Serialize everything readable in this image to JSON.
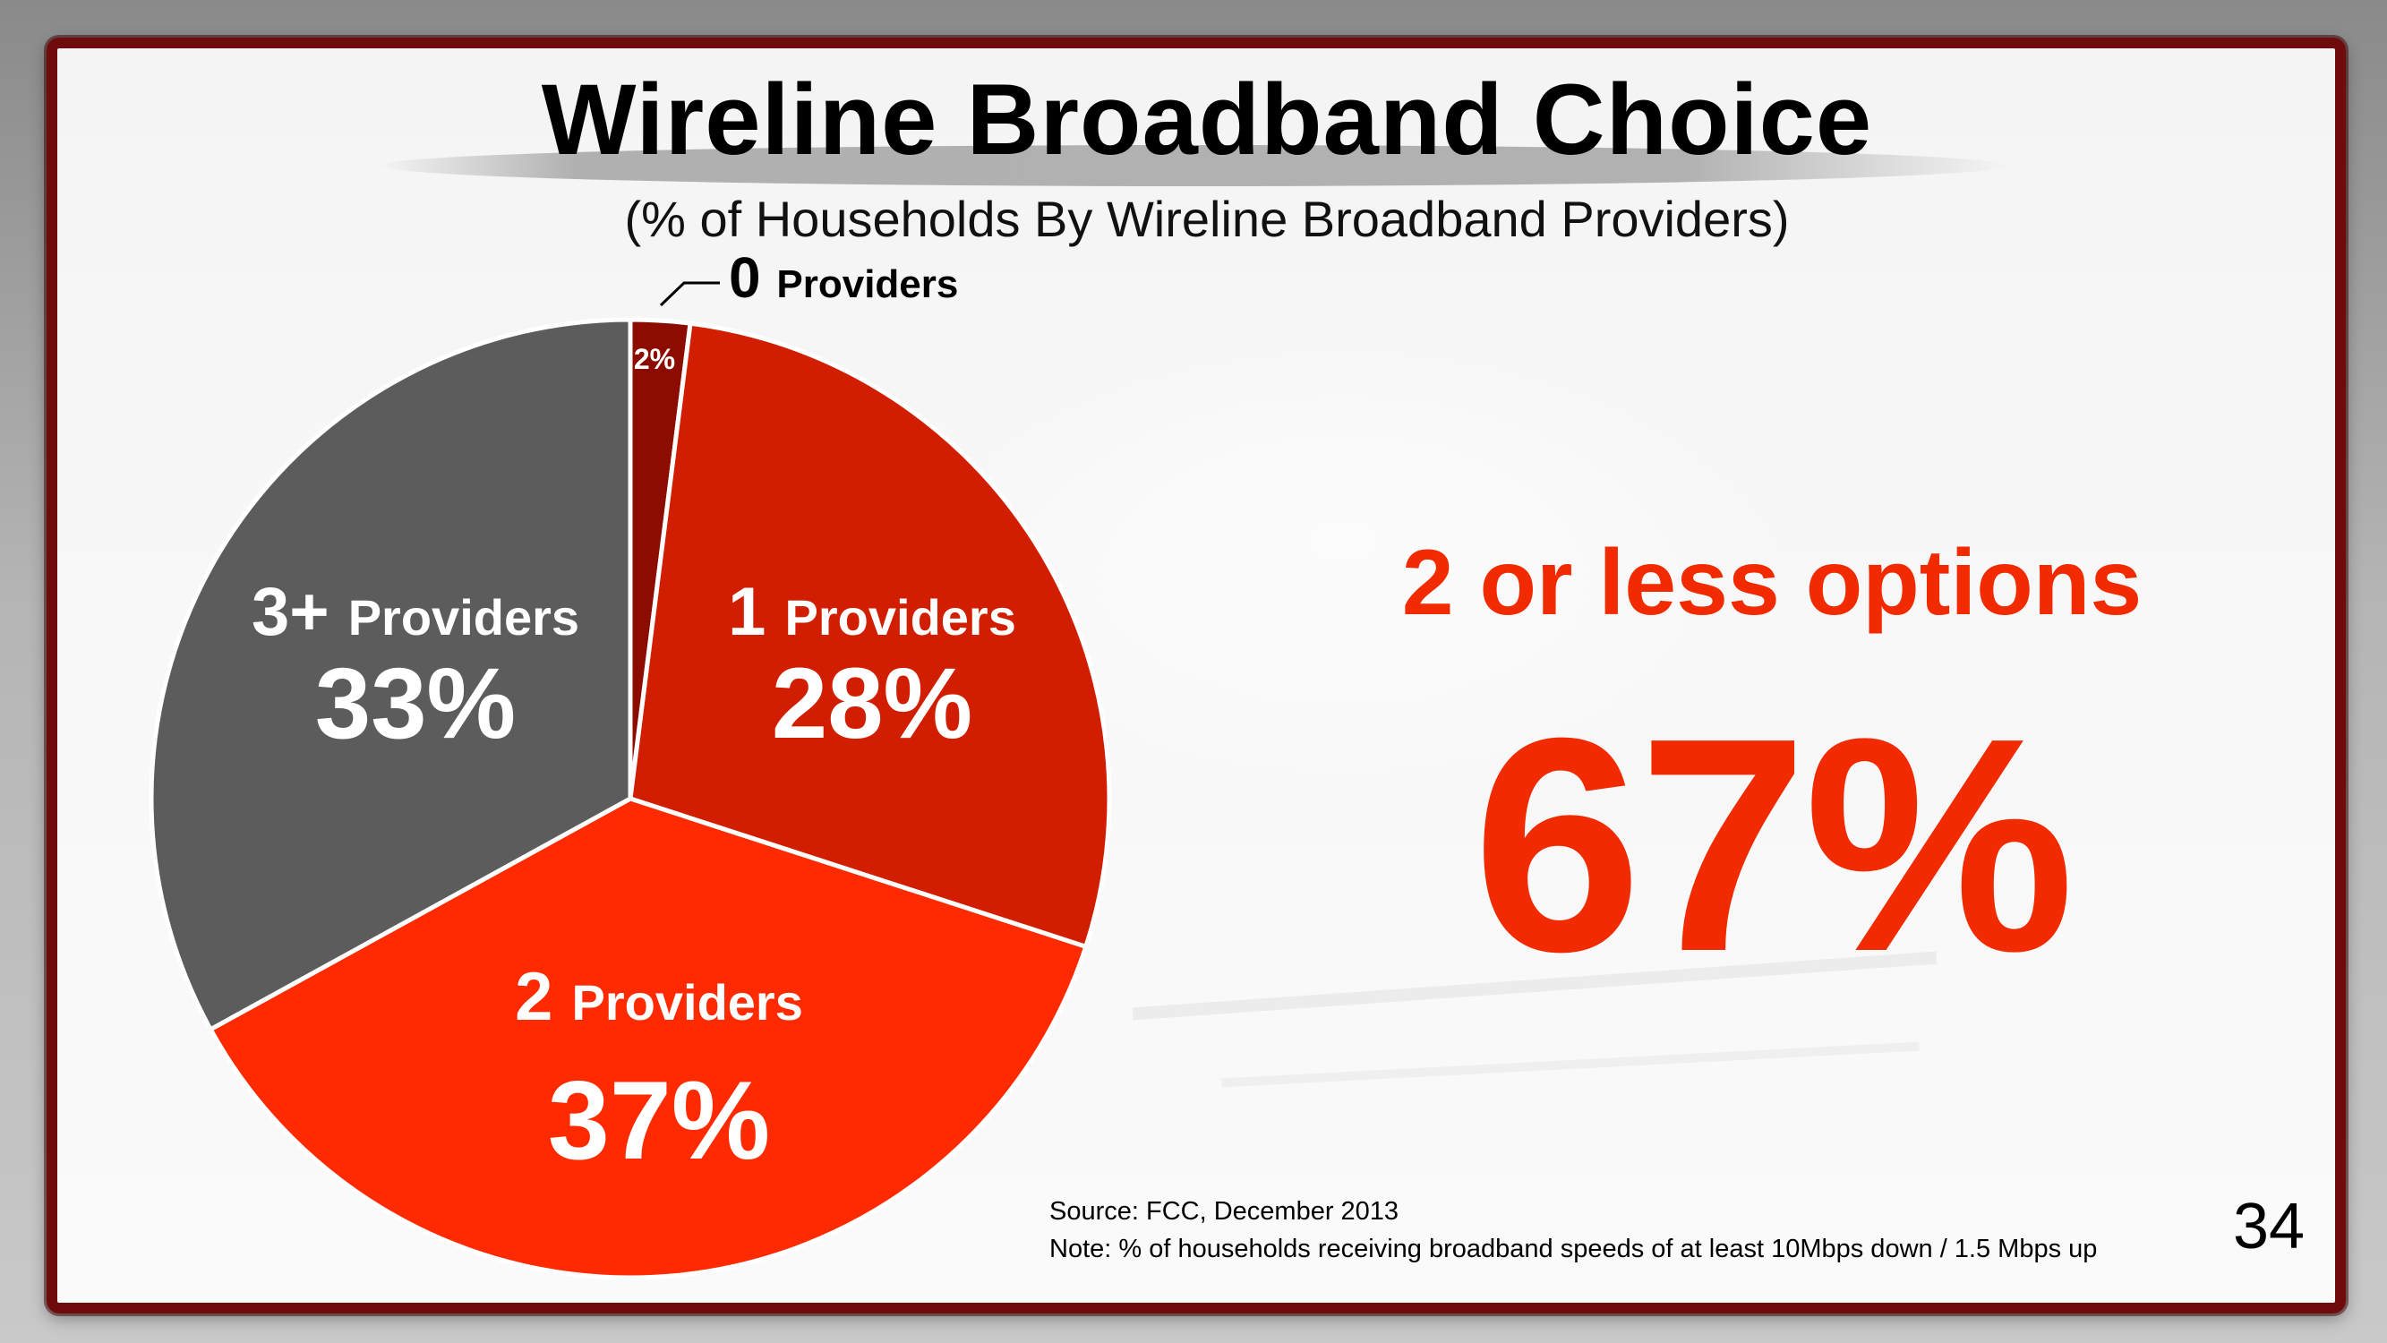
{
  "title": "Wireline Broadband Choice",
  "subtitle": "(% of Households By Wireline Broadband Providers)",
  "chart_data": {
    "type": "pie",
    "categories": [
      "0 Providers",
      "1 Providers",
      "2 Providers",
      "3+ Providers"
    ],
    "values": [
      2,
      28,
      37,
      33
    ],
    "value_labels": [
      "2%",
      "28%",
      "37%",
      "33%"
    ],
    "label_parts": [
      {
        "num": "0",
        "word": "Providers"
      },
      {
        "num": "1",
        "word": "Providers"
      },
      {
        "num": "2",
        "word": "Providers"
      },
      {
        "num": "3+",
        "word": "Providers"
      }
    ],
    "colors": [
      "#8c0d00",
      "#d21e00",
      "#ff2a00",
      "#5c5c5c"
    ]
  },
  "callout": {
    "label": "2 or less options",
    "value": "67%",
    "color": "#f22a00"
  },
  "source": {
    "line1": "Source: FCC, December 2013",
    "line2": "Note: % of households receiving broadband speeds of at least 10Mbps down / 1.5 Mbps up"
  },
  "page_number": "34"
}
